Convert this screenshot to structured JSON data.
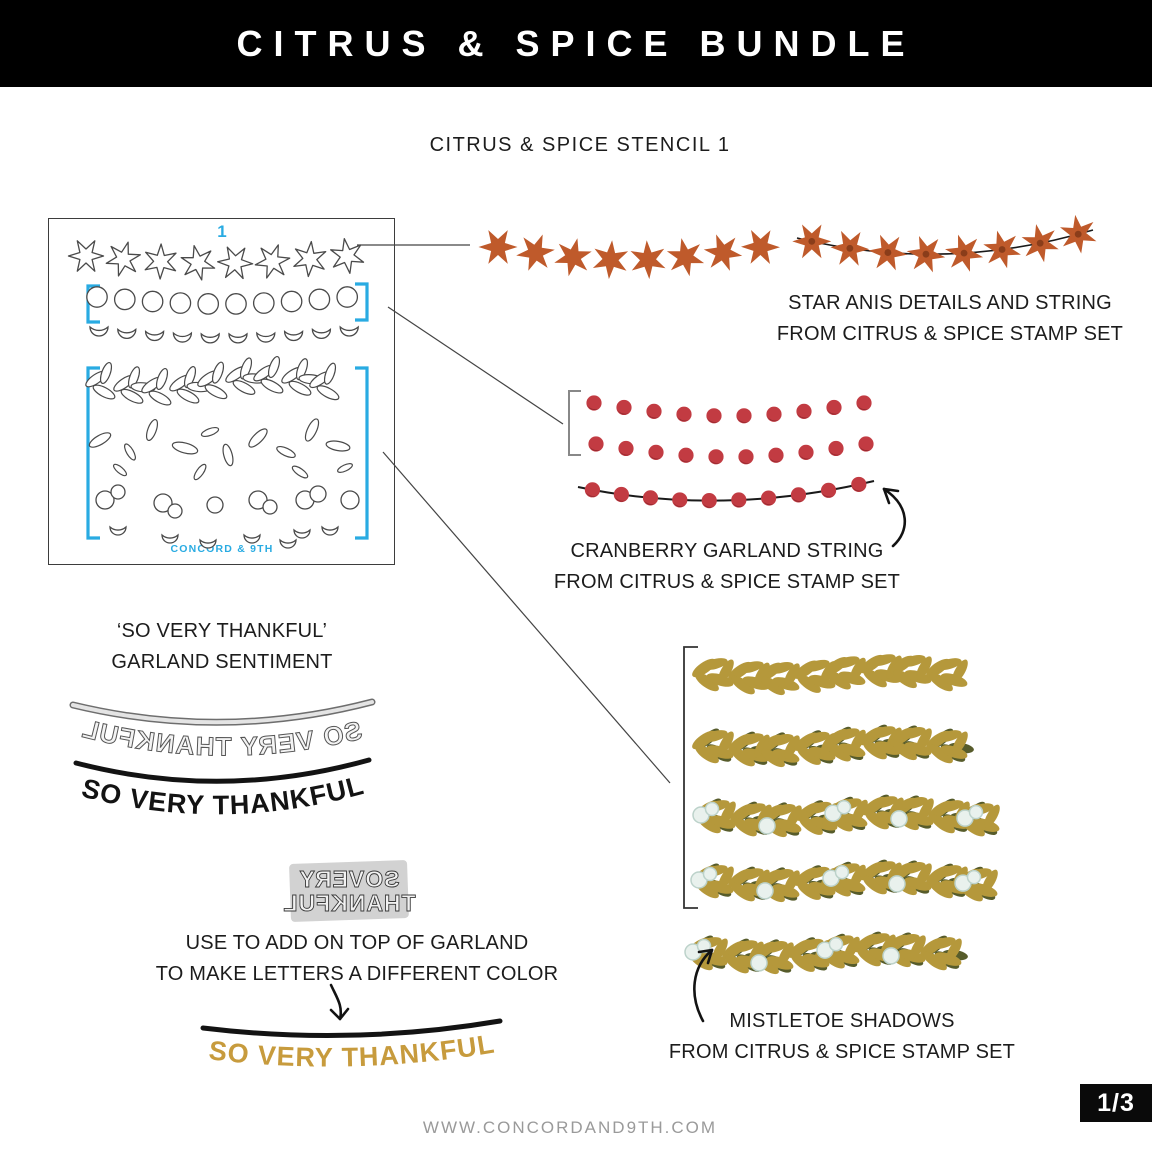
{
  "header": {
    "title": "CITRUS & SPICE BUNDLE"
  },
  "stencil": {
    "label": "CITRUS & SPICE STENCIL 1",
    "number": "1",
    "brand": "CONCORD & 9TH"
  },
  "captions": {
    "star_anise": {
      "line1": "STAR ANIS DETAILS AND STRING",
      "line2": "FROM CITRUS & SPICE STAMP SET"
    },
    "cranberry": {
      "line1": "CRANBERRY GARLAND STRING",
      "line2": "FROM CITRUS & SPICE STAMP SET"
    },
    "sentiment": {
      "line1": "‘SO VERY THANKFUL’",
      "line2": "GARLAND SENTIMENT"
    },
    "overlay_tip": {
      "line1": "USE TO ADD ON TOP OF GARLAND",
      "line2": "TO MAKE LETTERS A DIFFERENT COLOR"
    },
    "mistletoe": {
      "line1": "MISTLETOE SHADOWS",
      "line2": "FROM CITRUS & SPICE STAMP SET"
    }
  },
  "sentiment": {
    "text": "SO VERY THANKFUL",
    "stamp_line1": "SOVERY",
    "stamp_line2": "THANKFUL"
  },
  "footer": {
    "website": "WWW.CONCORDAND9TH.COM",
    "page": "1/3"
  },
  "colors": {
    "accent_blue": "#29abe2",
    "star_orange": "#bf5a2b",
    "star_center": "#8a3d1a",
    "cranberry_red": "#c23b42",
    "cranberry_shadow": "#8f272e",
    "mistletoe_gold": "#b5983b",
    "mistletoe_olive": "#575c2b",
    "berry_fill": "#e9f1ed",
    "berry_stroke": "#bcd2ca",
    "sentiment_gold": "#c79b3d",
    "ink_black": "#131313",
    "stencil_outline": "#4a4a4a",
    "footer_gray": "#9a9a9a"
  }
}
